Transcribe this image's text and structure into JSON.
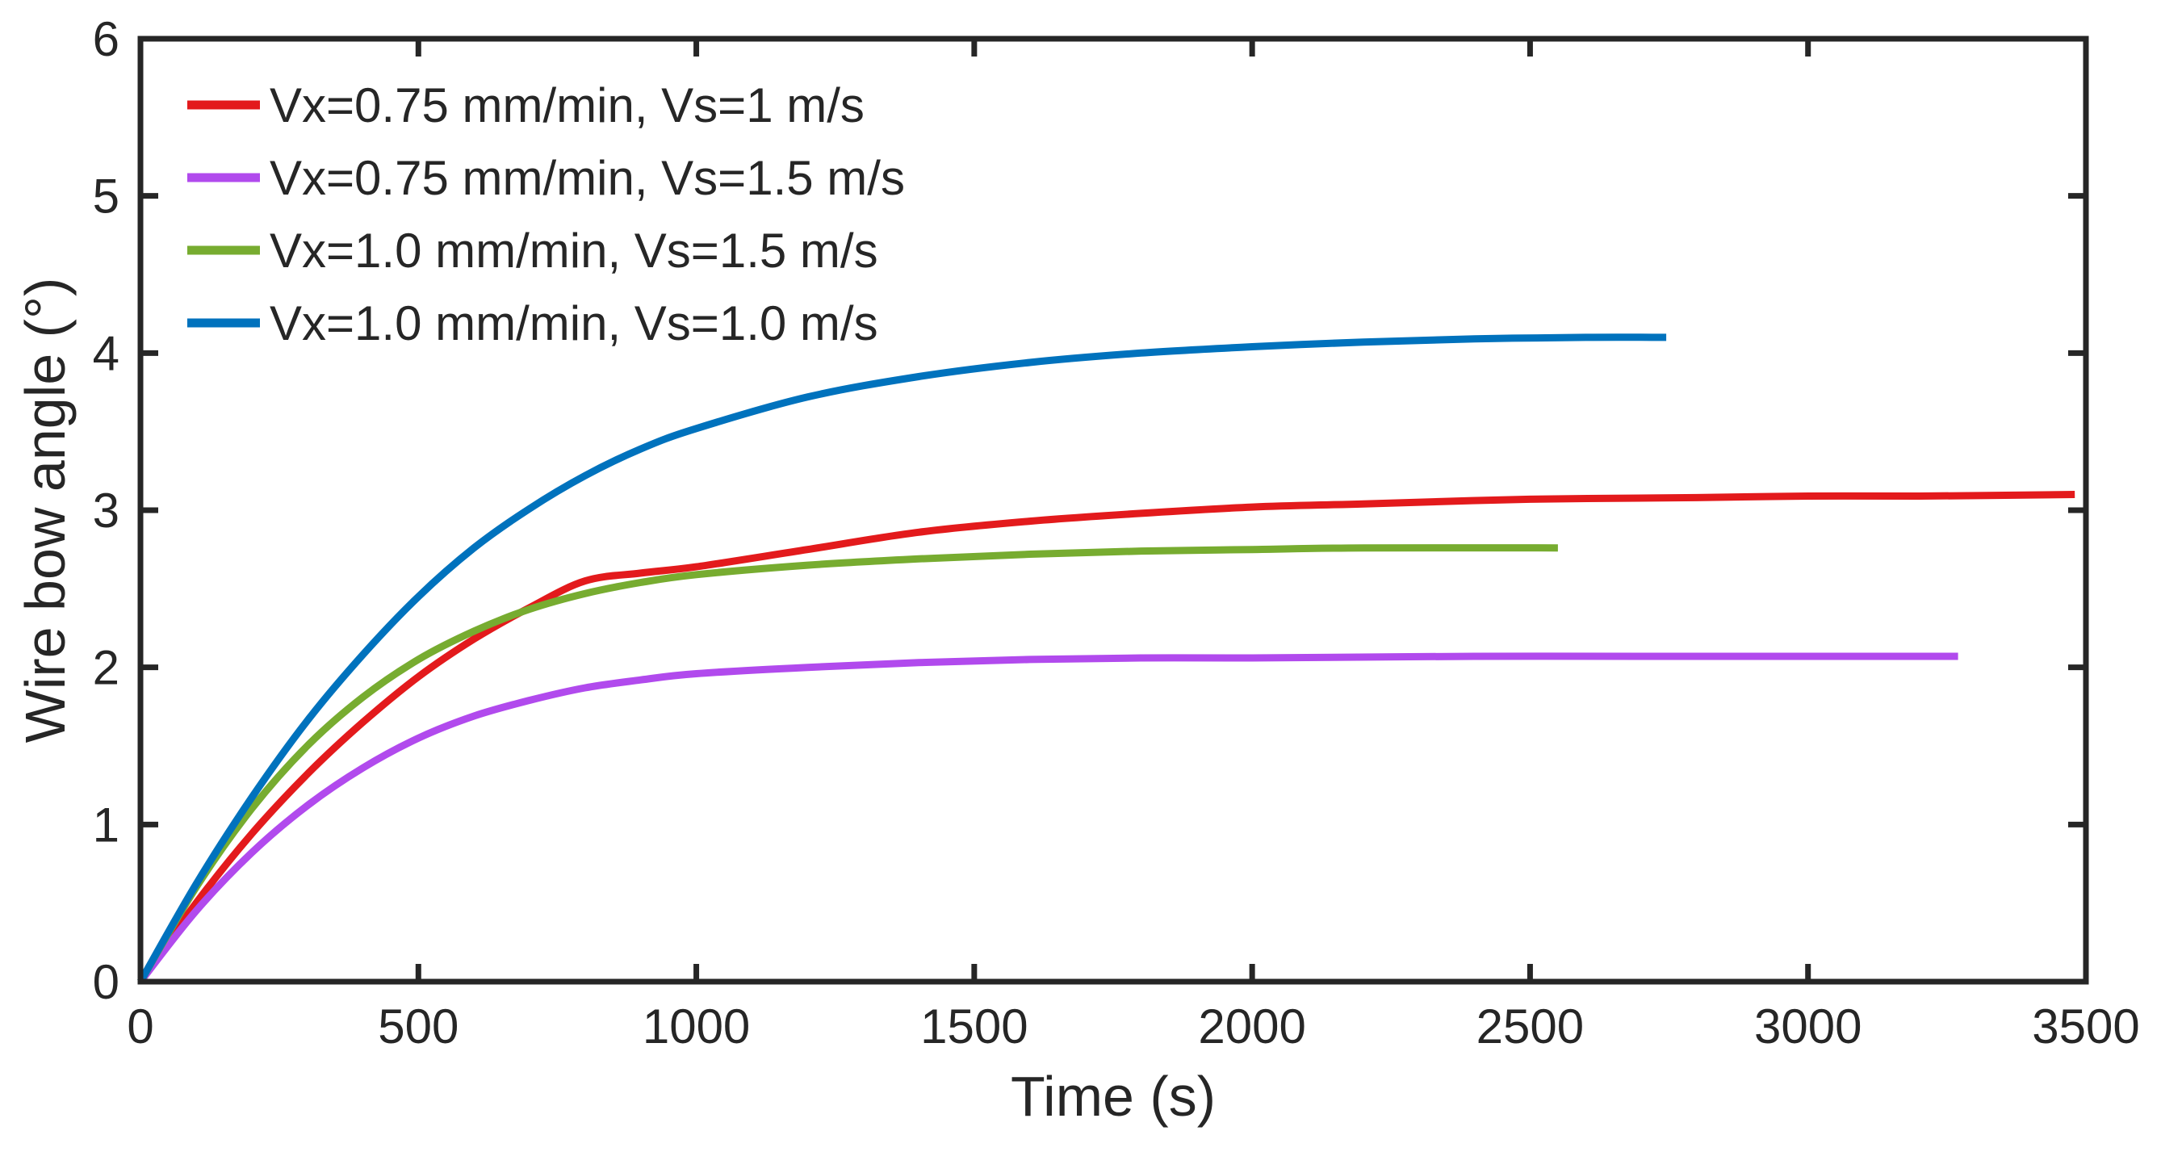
{
  "chart_data": {
    "type": "line",
    "title": "",
    "xlabel": "Time (s)",
    "ylabel": "Wire bow angle (°)",
    "xlim": [
      0,
      3500
    ],
    "ylim": [
      0,
      6
    ],
    "xticks": [
      0,
      500,
      1000,
      1500,
      2000,
      2500,
      3000,
      3500
    ],
    "yticks": [
      0,
      1,
      2,
      3,
      4,
      5,
      6
    ],
    "xtick_labels": [
      "0",
      "500",
      "1000",
      "1500",
      "2000",
      "2500",
      "3000",
      "3500"
    ],
    "ytick_labels": [
      "0",
      "1",
      "2",
      "3",
      "4",
      "5",
      "6"
    ],
    "grid": false,
    "legend_position": "top-left",
    "series": [
      {
        "name": "Vx=0.75 mm/min, Vs=1 m/s",
        "color": "#e31a1c",
        "x": [
          0,
          100,
          200,
          300,
          400,
          500,
          600,
          700,
          800,
          900,
          1000,
          1200,
          1400,
          1600,
          1800,
          2000,
          2200,
          2500,
          2800,
          3000,
          3200,
          3480
        ],
        "y": [
          0,
          0.5,
          0.94,
          1.32,
          1.65,
          1.94,
          2.18,
          2.38,
          2.55,
          2.6,
          2.64,
          2.75,
          2.86,
          2.93,
          2.98,
          3.02,
          3.04,
          3.07,
          3.08,
          3.09,
          3.09,
          3.1
        ]
      },
      {
        "name": "Vx=0.75 mm/min, Vs=1.5 m/s",
        "color": "#b14aed",
        "x": [
          0,
          100,
          200,
          300,
          400,
          500,
          600,
          700,
          800,
          900,
          1000,
          1200,
          1400,
          1600,
          1800,
          2000,
          2400,
          2800,
          3270
        ],
        "y": [
          0,
          0.45,
          0.82,
          1.12,
          1.36,
          1.55,
          1.69,
          1.79,
          1.87,
          1.92,
          1.96,
          2.0,
          2.03,
          2.05,
          2.06,
          2.06,
          2.07,
          2.07,
          2.07
        ]
      },
      {
        "name": "Vx=1.0 mm/min, Vs=1.5 m/s",
        "color": "#77ac30",
        "x": [
          0,
          100,
          200,
          300,
          400,
          500,
          600,
          700,
          800,
          900,
          1000,
          1200,
          1400,
          1600,
          1800,
          2000,
          2200,
          2550
        ],
        "y": [
          0,
          0.6,
          1.1,
          1.5,
          1.81,
          2.05,
          2.23,
          2.37,
          2.47,
          2.54,
          2.59,
          2.65,
          2.69,
          2.72,
          2.74,
          2.75,
          2.76,
          2.76
        ]
      },
      {
        "name": "Vx=1.0 mm/min, Vs=1.0 m/s",
        "color": "#0072bd",
        "x": [
          0,
          100,
          200,
          300,
          400,
          500,
          600,
          700,
          800,
          900,
          1000,
          1200,
          1400,
          1600,
          1800,
          2000,
          2200,
          2400,
          2600,
          2745
        ],
        "y": [
          0,
          0.62,
          1.17,
          1.66,
          2.08,
          2.45,
          2.76,
          3.01,
          3.22,
          3.39,
          3.52,
          3.72,
          3.85,
          3.94,
          4.0,
          4.04,
          4.07,
          4.09,
          4.1,
          4.1
        ]
      }
    ]
  }
}
